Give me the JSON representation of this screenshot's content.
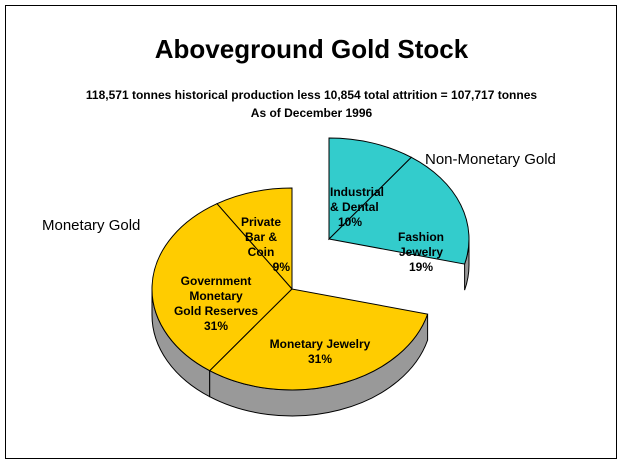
{
  "chart_data": {
    "type": "pie",
    "title": "Aboveground Gold Stock",
    "subtitle": "118,571 tonnes historical production less 10,854 total attrition = 107,717 tonnes",
    "subtitle2": "As of December 1996",
    "groups": [
      {
        "name": "Monetary Gold",
        "exploded": false
      },
      {
        "name": "Non-Monetary Gold",
        "exploded": true
      }
    ],
    "slices": [
      {
        "label": "Private\nBar &\nCoin",
        "percent_text": "9%",
        "value": 9,
        "group": "Monetary Gold",
        "color": "#FFCC00"
      },
      {
        "label": "Government\nMonetary\nGold Reserves",
        "percent_text": "31%",
        "value": 31,
        "group": "Monetary Gold",
        "color": "#FFCC00"
      },
      {
        "label": "Monetary Jewelry",
        "percent_text": "31%",
        "value": 31,
        "group": "Monetary Gold",
        "color": "#FFCC00"
      },
      {
        "label": "Fashion\nJewelry",
        "percent_text": "19%",
        "value": 19,
        "group": "Non-Monetary Gold",
        "color": "#33CCCC"
      },
      {
        "label": "Industrial\n& Dental",
        "percent_text": "10%",
        "value": 10,
        "group": "Non-Monetary Gold",
        "color": "#33CCCC"
      }
    ],
    "side_color": "#999999",
    "edge_color": "#000000"
  }
}
